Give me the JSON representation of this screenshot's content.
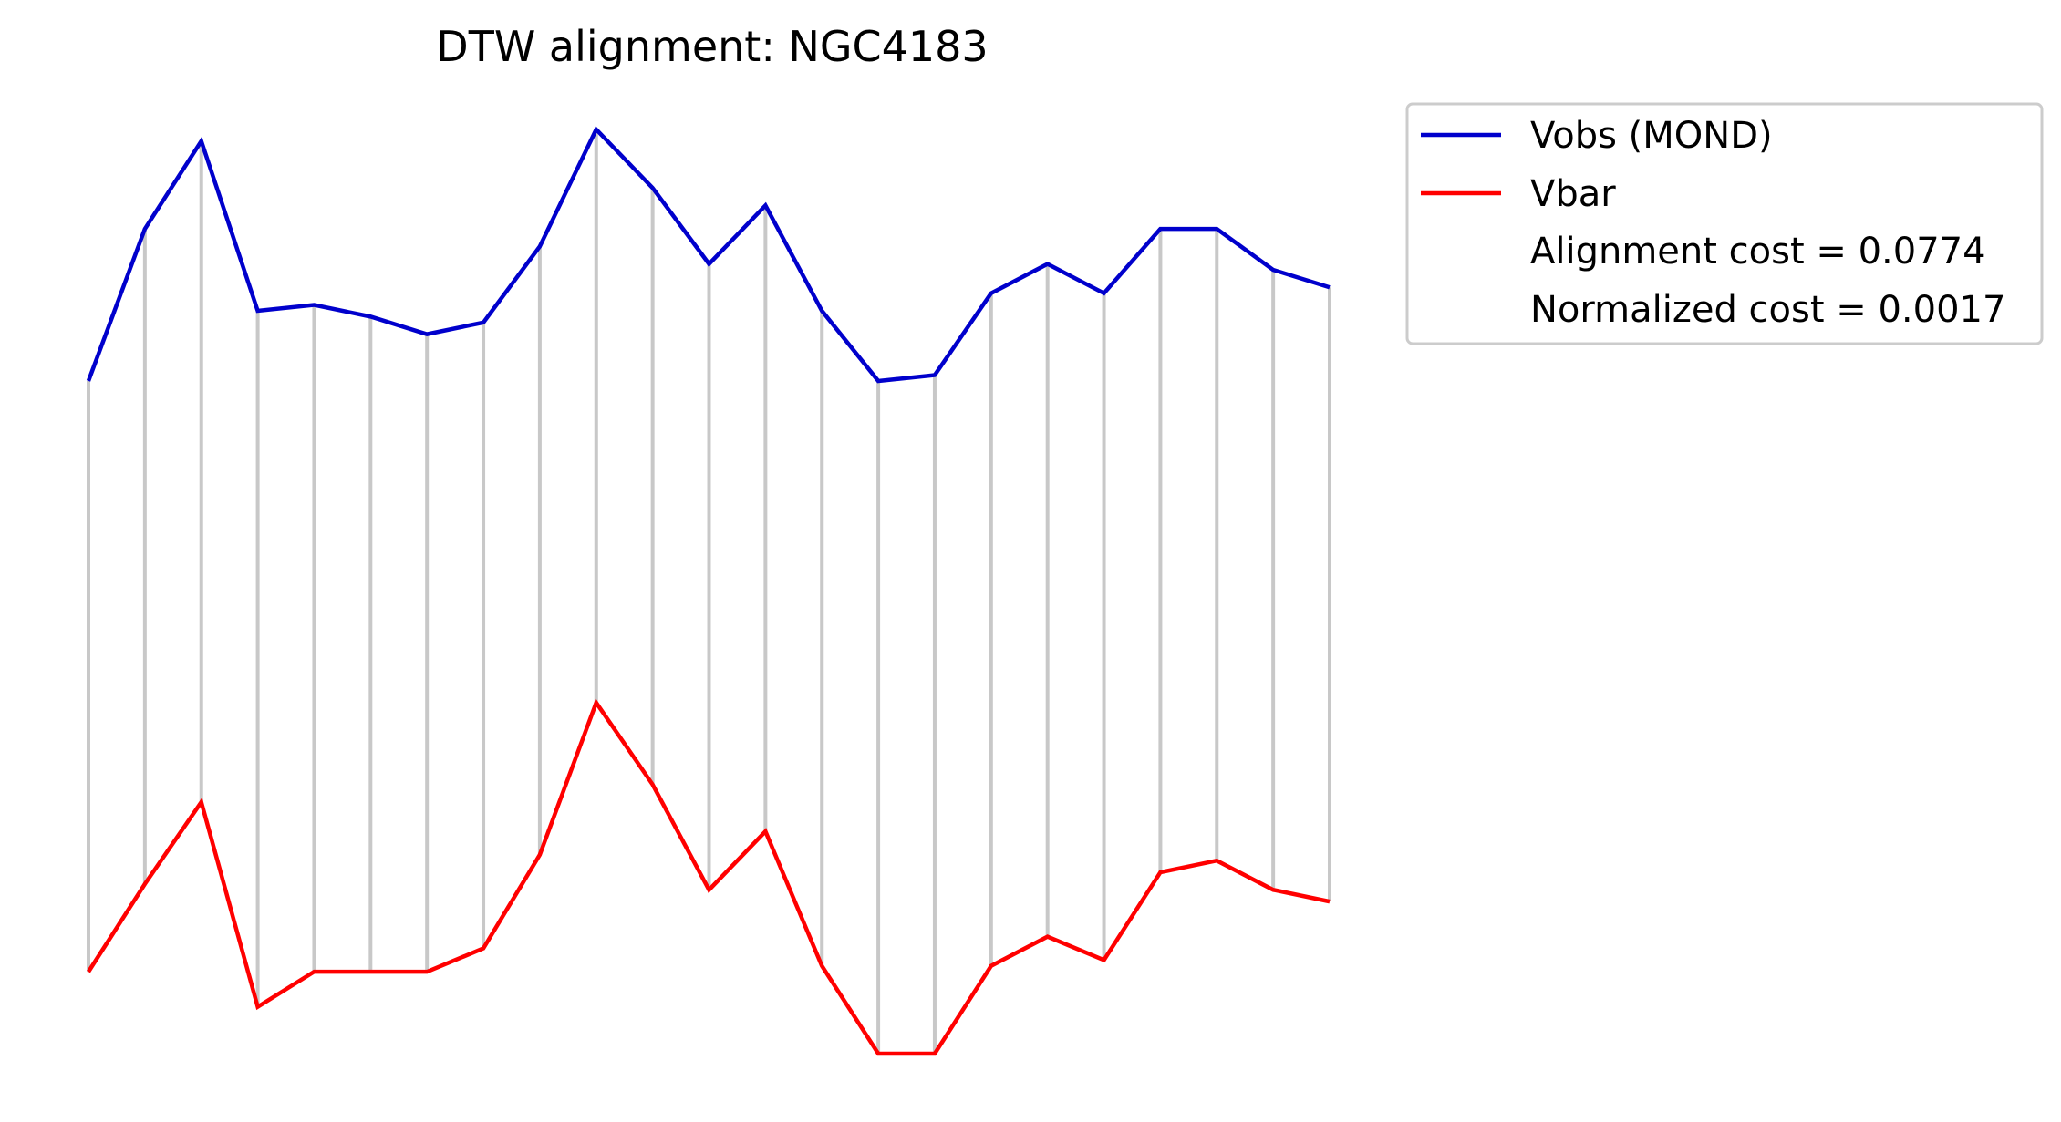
{
  "chart_data": {
    "type": "line",
    "title": "DTW alignment: NGC4183",
    "xlabel": "",
    "ylabel": "",
    "axes_visible": false,
    "grid": false,
    "legend_position": "top-right-outside",
    "x": [
      0,
      1,
      2,
      3,
      4,
      5,
      6,
      7,
      8,
      9,
      10,
      11,
      12,
      13,
      14,
      15,
      16,
      17,
      18,
      19,
      20,
      21,
      22
    ],
    "series": [
      {
        "name": "Vobs (MOND)",
        "color": "#0000cc",
        "values": [
          1.94,
          2.2,
          2.35,
          2.06,
          2.07,
          2.05,
          2.02,
          2.04,
          2.17,
          2.37,
          2.27,
          2.14,
          2.24,
          2.06,
          1.94,
          1.95,
          2.09,
          2.14,
          2.09,
          2.2,
          2.2,
          2.13,
          2.1
        ]
      },
      {
        "name": "Vbar",
        "color": "#ff0000",
        "values": [
          0.93,
          1.08,
          1.22,
          0.87,
          0.93,
          0.93,
          0.93,
          0.97,
          1.13,
          1.39,
          1.25,
          1.07,
          1.17,
          0.94,
          0.79,
          0.79,
          0.94,
          0.99,
          0.95,
          1.1,
          1.12,
          1.07,
          1.05
        ]
      }
    ],
    "alignment_pairs": [
      [
        0,
        0
      ],
      [
        1,
        1
      ],
      [
        2,
        2
      ],
      [
        3,
        3
      ],
      [
        4,
        4
      ],
      [
        5,
        5
      ],
      [
        6,
        6
      ],
      [
        7,
        7
      ],
      [
        8,
        8
      ],
      [
        9,
        9
      ],
      [
        10,
        10
      ],
      [
        11,
        11
      ],
      [
        12,
        12
      ],
      [
        13,
        13
      ],
      [
        14,
        14
      ],
      [
        15,
        15
      ],
      [
        16,
        16
      ],
      [
        17,
        17
      ],
      [
        18,
        18
      ],
      [
        19,
        19
      ],
      [
        20,
        20
      ],
      [
        21,
        21
      ],
      [
        22,
        22
      ]
    ],
    "alignment_line_color": "#c8c8c8",
    "legend": [
      {
        "label": "Vobs (MOND)",
        "color": "#0000cc",
        "line": true
      },
      {
        "label": "Vbar",
        "color": "#ff0000",
        "line": true
      },
      {
        "label": "Alignment cost = 0.0774",
        "line": false
      },
      {
        "label": "Normalized cost = 0.0017",
        "line": false
      }
    ]
  }
}
